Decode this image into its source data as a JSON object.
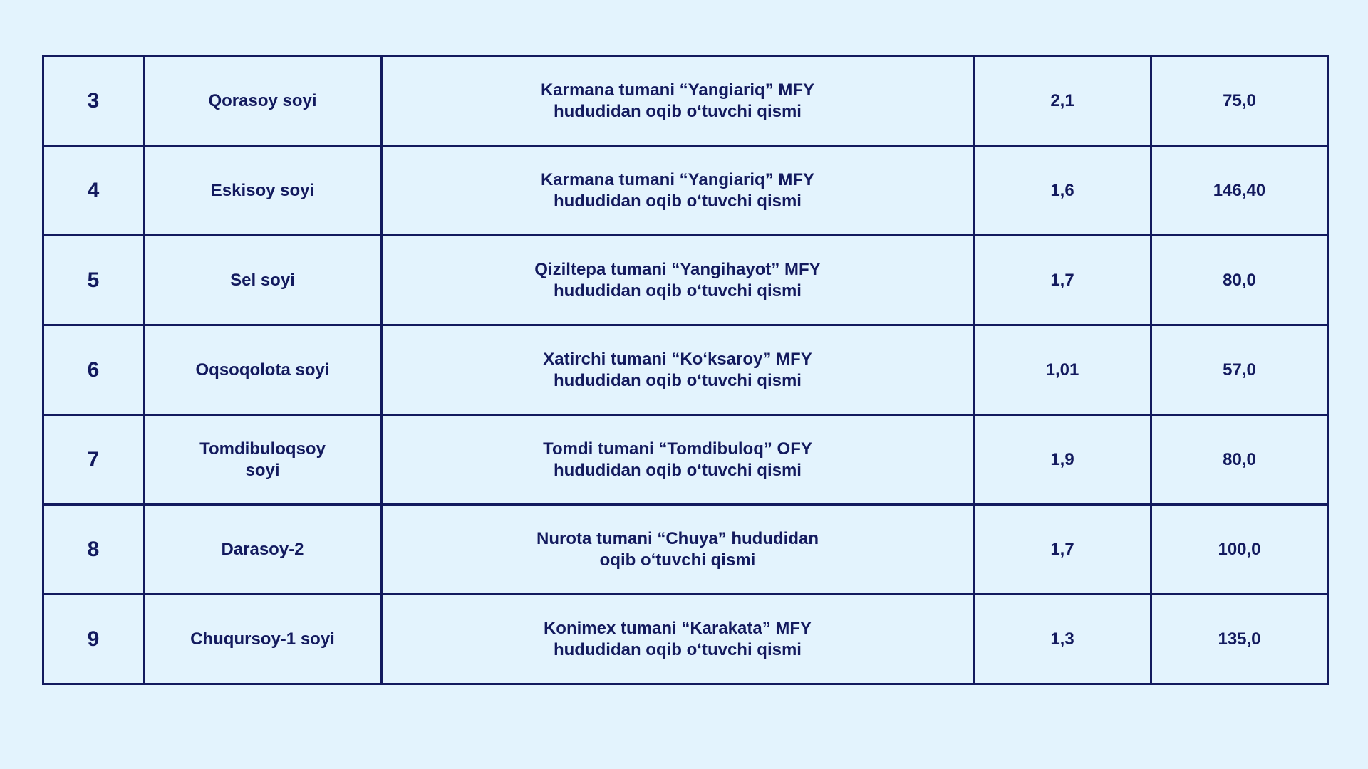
{
  "colors": {
    "background": "#e3f3fd",
    "border": "#131a5e",
    "text": "#131a5e"
  },
  "table": {
    "rows": [
      {
        "num": "3",
        "name": "Qorasoy soyi",
        "location": "Karmana tumani “Yangiariq” MFY\nhududidan oqib o‘tuvchi qismi",
        "length": "2,1",
        "value": "75,0"
      },
      {
        "num": "4",
        "name": "Eskisoy soyi",
        "location": "Karmana tumani “Yangiariq” MFY\nhududidan oqib o‘tuvchi qismi",
        "length": "1,6",
        "value": "146,40"
      },
      {
        "num": "5",
        "name": "Sel soyi",
        "location": "Qiziltepa tumani “Yangihayot” MFY\nhududidan oqib o‘tuvchi qismi",
        "length": "1,7",
        "value": "80,0"
      },
      {
        "num": "6",
        "name": "Oqsoqolota soyi",
        "location": "Xatirchi tumani “Ko‘ksaroy” MFY\nhududidan oqib o‘tuvchi qismi",
        "length": "1,01",
        "value": "57,0"
      },
      {
        "num": "7",
        "name": "Tomdibuloqsoy\nsoyi",
        "location": "Tomdi tumani “Tomdibuloq” OFY\nhududidan oqib o‘tuvchi qismi",
        "length": "1,9",
        "value": "80,0"
      },
      {
        "num": "8",
        "name": "Darasoy-2",
        "location": "Nurota tumani “Chuya” hududidan\noqib o‘tuvchi qismi",
        "length": "1,7",
        "value": "100,0"
      },
      {
        "num": "9",
        "name": "Chuqursoy-1 soyi",
        "location": "Konimex tumani “Karakata” MFY\nhududidan oqib o‘tuvchi qismi",
        "length": "1,3",
        "value": "135,0"
      }
    ]
  }
}
